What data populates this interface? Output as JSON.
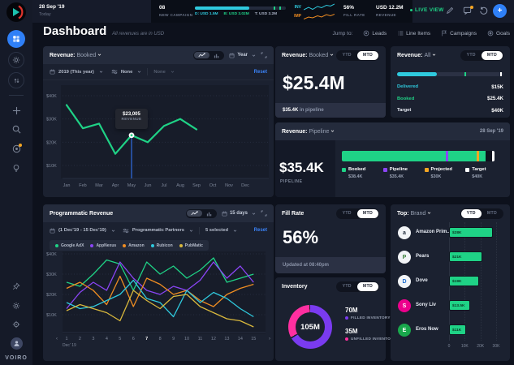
{
  "sidebar": {
    "brand": "VOIRO"
  },
  "topbar": {
    "date": "28 Sep '19",
    "date_sub": "Today",
    "campaigns": {
      "count": "08",
      "label": "NEW CAMPAIGN",
      "progress_pct": 60,
      "ticks_pct": [
        87,
        93
      ],
      "delivered": "D: USD 1.5M",
      "booked": "B: USD 3.02M",
      "target": "T: USD 3.2M",
      "delivered_color": "#2fc9dd",
      "booked_color": "#1fd286",
      "target_color": "#aab2c5"
    },
    "inv_label": "INV",
    "imp_label": "IMP",
    "fill_rate": {
      "value": "56%",
      "label": "FILL RATE"
    },
    "revenue": {
      "value": "USD 12.2M",
      "label": "REVENUE"
    },
    "live_view": "LIVE VIEW"
  },
  "header": {
    "title": "Dashboard",
    "subtitle": "All revenues are in USD",
    "jump_label": "Jump to:",
    "jump_items": [
      "Leads",
      "Line Items",
      "Campaigns",
      "Goals"
    ]
  },
  "toggle_options": [
    "YTD",
    "MTD"
  ],
  "revenue_trend": {
    "title": "Revenue:",
    "title_value": "Booked",
    "period": "Year",
    "filter_year": "2019 (This year)",
    "filter_none1": "None",
    "filter_none2": "None",
    "reset": "Reset",
    "chart_data": {
      "type": "line",
      "x": [
        "Jan",
        "Feb",
        "Mar",
        "Apr",
        "May",
        "Jun",
        "Jul",
        "Aug",
        "Sep",
        "Oct",
        "Nov",
        "Dec"
      ],
      "yticks": [
        "$40K",
        "$30K",
        "$20K",
        "$10K"
      ],
      "ylim": [
        0,
        40000
      ],
      "series": [
        {
          "name": "Booked",
          "color": "#1fd286",
          "values": [
            36,
            26,
            28,
            15,
            23,
            20,
            27,
            30,
            25.5
          ]
        }
      ],
      "tooltip": {
        "index": 4,
        "value": "$23,005",
        "label": "REVENUE"
      }
    }
  },
  "revenue_booked": {
    "title": "Revenue:",
    "title_value": "Booked",
    "active_toggle": "MTD",
    "amount": "$25.4M",
    "footnote_value": "$35.4K",
    "footnote_text": " in pipeline"
  },
  "revenue_all": {
    "title": "Revenue:",
    "title_value": "All",
    "active_toggle": "MTD",
    "chart_data": {
      "type": "bar",
      "max": 40,
      "rows": [
        {
          "label": "Delivered",
          "value": "$15K",
          "num": 15,
          "color": "#2fc9dd"
        },
        {
          "label": "Booked",
          "value": "$25.4K",
          "num": 25.4,
          "color": "#1fd286"
        },
        {
          "label": "Target",
          "value": "$40K",
          "num": 40,
          "color": "#e8ecf4"
        }
      ]
    }
  },
  "revenue_pipeline": {
    "title": "Revenue:",
    "title_value": "Pipeline",
    "date": "28 Sep '19",
    "amount": "$35.4K",
    "amount_label": "PIPELINE",
    "chart_data": {
      "type": "stacked-bar",
      "segments": [
        {
          "name": "Booked",
          "value": "$38.4K",
          "color": "#1fd286",
          "pct": 94
        },
        {
          "name": "Pipeline",
          "value": "$35.4K",
          "color": "#8b45f6",
          "pct": 68
        },
        {
          "name": "Projected",
          "value": "$30K",
          "color": "#f5a623",
          "pct": 88.5
        },
        {
          "name": "Target",
          "value": "$40K",
          "color": "#ffffff",
          "pct": 99
        }
      ]
    }
  },
  "programmatic": {
    "title": "Programmatic Revenue",
    "period": "15 days",
    "filter_range": "(1 Dec'19 - 15 Dec'19)",
    "filter_partners": "Programmatic Partners",
    "filter_selected": "5 selected",
    "reset": "Reset",
    "chart_data": {
      "type": "line",
      "x": [
        1,
        2,
        3,
        4,
        5,
        6,
        7,
        8,
        9,
        10,
        11,
        12,
        13,
        14,
        15
      ],
      "x_sub": "Dec' 19",
      "highlight_x": 7,
      "yticks": [
        "$40K",
        "$30K",
        "$20K",
        "$10K"
      ],
      "ylim": [
        0,
        40000
      ],
      "series": [
        {
          "name": "Google AdX",
          "color": "#1fd286",
          "values": [
            26,
            24,
            30,
            37,
            35,
            22,
            36,
            30,
            34,
            28,
            32,
            38,
            26,
            28,
            30
          ]
        },
        {
          "name": "AppNexus",
          "color": "#8b45f6",
          "values": [
            13,
            21,
            26,
            22,
            36,
            28,
            22,
            20,
            24,
            22,
            27,
            36,
            28,
            34,
            26
          ]
        },
        {
          "name": "Amazon",
          "color": "#ef8d22",
          "values": [
            23,
            26,
            22,
            15,
            29,
            14,
            28,
            25,
            20,
            22,
            17,
            14,
            20,
            23,
            25
          ]
        },
        {
          "name": "Rubicon",
          "color": "#2fc9dd",
          "values": [
            16,
            13,
            14,
            17,
            20,
            27,
            18,
            16,
            9,
            22,
            16,
            21,
            18,
            13,
            9
          ]
        },
        {
          "name": "PubMatic",
          "color": "#d9b83c",
          "values": [
            12,
            15,
            13,
            11,
            7,
            22,
            17,
            13,
            19,
            20,
            14,
            11,
            8,
            7,
            4
          ]
        }
      ]
    }
  },
  "fill_rate": {
    "title": "Fill Rate",
    "active_toggle": "MTD",
    "value": "56%",
    "updated": "Updated at 08:40pm"
  },
  "inventory": {
    "title": "Inventory",
    "active_toggle": "MTD",
    "total": "105M",
    "chart_data": {
      "type": "pie",
      "slices": [
        {
          "name": "FILLED INVENTORY",
          "value": "70M",
          "num": 70,
          "color": "#7a3bf0"
        },
        {
          "name": "UNFILLED INVENTORY",
          "value": "35M",
          "num": 35,
          "color": "#ff2fa0"
        }
      ]
    }
  },
  "top_brand": {
    "title": "Top:",
    "title_value": "Brand",
    "active_toggle": "YTD",
    "chart_data": {
      "type": "bar",
      "xticks": [
        "0",
        "10K",
        "20K",
        "30K"
      ],
      "max": 30,
      "rows": [
        {
          "name": "Amazon Prim...eo",
          "value": "$28K",
          "num": 28,
          "avatar_bg": "#f2f4f7",
          "avatar_fg": "#232f3e",
          "initial": "a"
        },
        {
          "name": "Pears",
          "value": "$21K",
          "num": 21,
          "avatar_bg": "#f2f4f7",
          "avatar_fg": "#3a7f3a",
          "initial": "P"
        },
        {
          "name": "Dove",
          "value": "$19K",
          "num": 19,
          "avatar_bg": "#f2f4f7",
          "avatar_fg": "#1f6dd0",
          "initial": "D"
        },
        {
          "name": "Sony Liv",
          "value": "$13.5K",
          "num": 13.5,
          "avatar_bg": "#ec008c",
          "avatar_fg": "#ffffff",
          "initial": "S"
        },
        {
          "name": "Eros Now",
          "value": "$11K",
          "num": 11,
          "avatar_bg": "#19a84c",
          "avatar_fg": "#ffffff",
          "initial": "E"
        }
      ]
    }
  }
}
